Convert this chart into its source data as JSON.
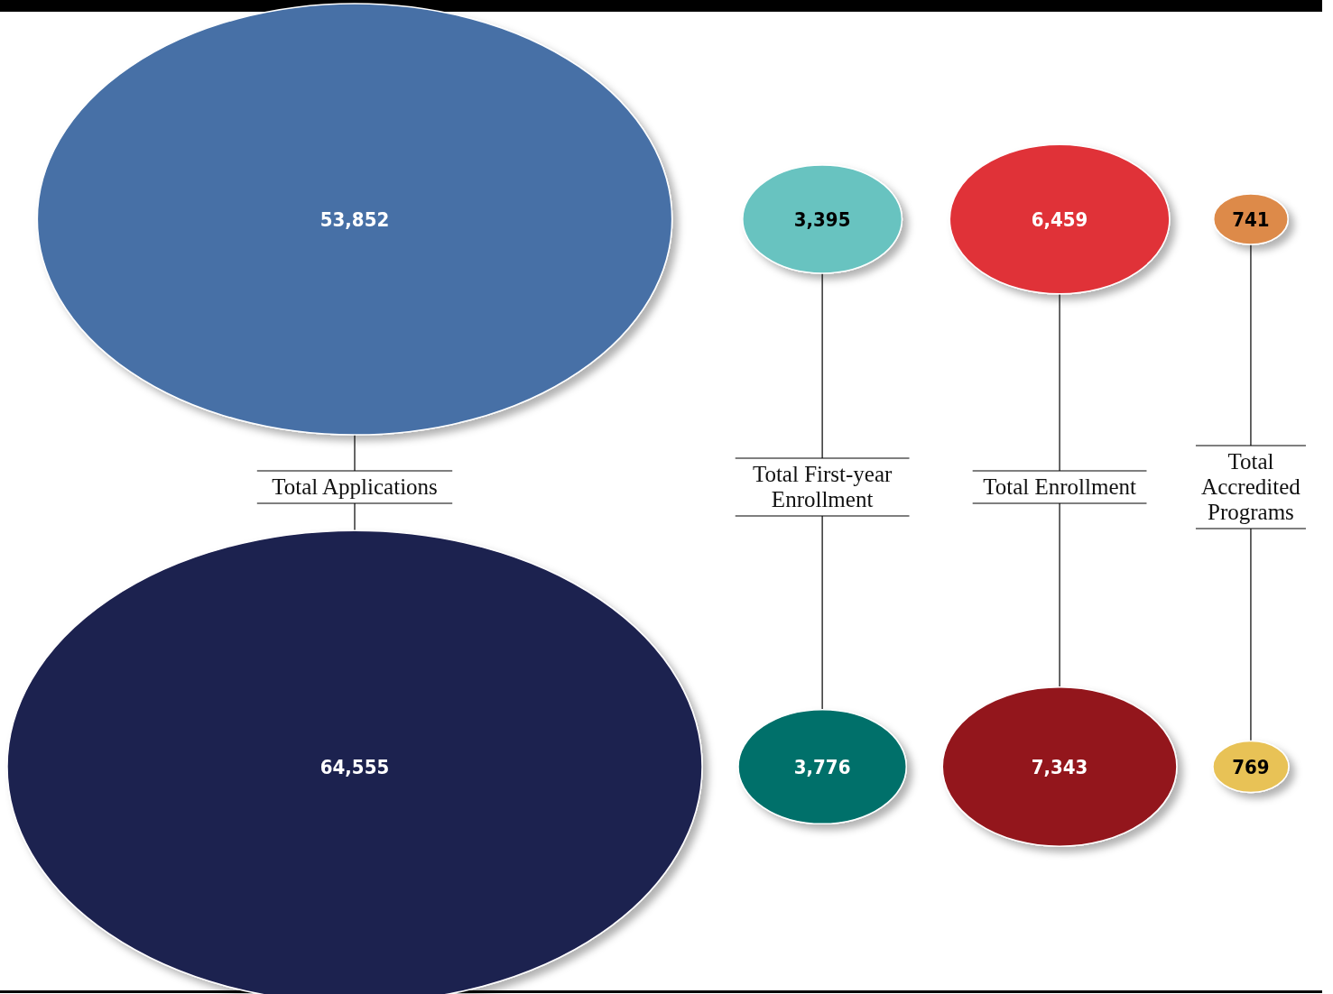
{
  "chart_data": {
    "type": "other",
    "categories": [
      "Total Applications",
      "Total First-year Enrollment",
      "Total Enrollment",
      "Total Accredited Programs"
    ],
    "series": [
      {
        "values": [
          53852,
          3395,
          6459,
          741
        ],
        "value_labels": [
          "53,852",
          "3,395",
          "6,459",
          "741"
        ],
        "colors": [
          "#4670a6",
          "#67c3c0",
          "#e03038",
          "#dd8a4a"
        ]
      },
      {
        "values": [
          64555,
          3776,
          7343,
          769
        ],
        "value_labels": [
          "64,555",
          "3,776",
          "7,343",
          "769"
        ],
        "colors": [
          "#1f2150",
          "#00706b",
          "#93171e",
          "#e8c256"
        ]
      }
    ]
  }
}
